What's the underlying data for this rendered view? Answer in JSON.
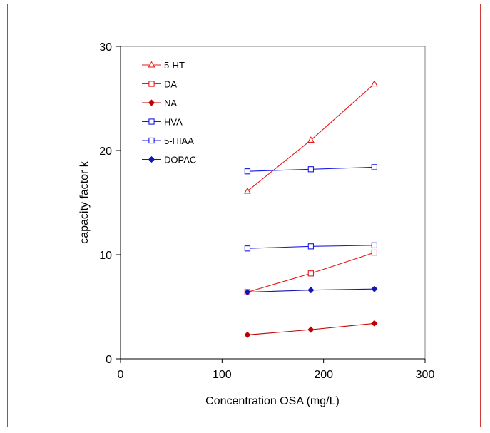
{
  "chart_data": {
    "type": "line",
    "title": "",
    "xlabel": "Concentration OSA (mg/L)",
    "ylabel": "capacity factor k",
    "xlim": [
      0,
      300
    ],
    "ylim": [
      0,
      30
    ],
    "xticks": [
      0,
      100,
      200,
      300
    ],
    "yticks": [
      0,
      10,
      20,
      30
    ],
    "grid": false,
    "legend_position": "top-left",
    "series": [
      {
        "name": "5-HT",
        "marker": "triangle-open",
        "color": "#e41a1a",
        "x": [
          125,
          187.5,
          250
        ],
        "y": [
          16.1,
          21.0,
          26.4
        ]
      },
      {
        "name": "DA",
        "marker": "square-open",
        "color": "#e41a1a",
        "x": [
          125,
          187.5,
          250
        ],
        "y": [
          6.4,
          8.2,
          10.2
        ]
      },
      {
        "name": "NA",
        "marker": "diamond-filled",
        "color": "#c00000",
        "x": [
          125,
          187.5,
          250
        ],
        "y": [
          2.3,
          2.8,
          3.4
        ]
      },
      {
        "name": "HVA",
        "marker": "square-open",
        "color": "#1a1ae4",
        "x": [
          125,
          187.5,
          250
        ],
        "y": [
          18.0,
          18.2,
          18.4
        ]
      },
      {
        "name": "5-HIAA",
        "marker": "square-open",
        "color": "#1a1ae4",
        "x": [
          125,
          187.5,
          250
        ],
        "y": [
          10.6,
          10.8,
          10.9
        ]
      },
      {
        "name": "DOPAC",
        "marker": "diamond-filled",
        "color": "#1515b4",
        "x": [
          125,
          187.5,
          250
        ],
        "y": [
          6.4,
          6.6,
          6.7
        ]
      }
    ]
  }
}
